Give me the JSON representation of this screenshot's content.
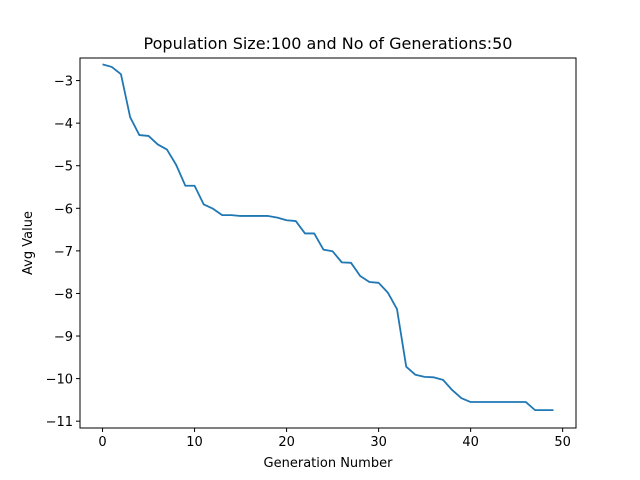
{
  "chart_data": {
    "type": "line",
    "title": "Population Size:100 and No of Generations:50",
    "xlabel": "Generation Number",
    "ylabel": "Avg Value",
    "xlim": [
      -2.45,
      51.45
    ],
    "ylim": [
      -11.16,
      -2.47
    ],
    "xticks": [
      0,
      10,
      20,
      30,
      40,
      50
    ],
    "yticks": [
      -3,
      -4,
      -5,
      -6,
      -7,
      -8,
      -9,
      -10,
      -11
    ],
    "tick_labels": {
      "x": [
        "0",
        "10",
        "20",
        "30",
        "40",
        "50"
      ],
      "y": [
        "−3",
        "−4",
        "−5",
        "−6",
        "−7",
        "−8",
        "−9",
        "−10",
        "−11"
      ]
    },
    "grid": false,
    "series": [
      {
        "color": "#1f77b4",
        "x": [
          0,
          1,
          2,
          3,
          4,
          5,
          6,
          7,
          8,
          9,
          10,
          11,
          12,
          13,
          14,
          15,
          16,
          17,
          18,
          19,
          20,
          21,
          22,
          23,
          24,
          25,
          26,
          27,
          28,
          29,
          30,
          31,
          32,
          33,
          34,
          35,
          36,
          37,
          38,
          39,
          40,
          41,
          42,
          43,
          44,
          45,
          46,
          47,
          48,
          49
        ],
        "values": [
          -2.62,
          -2.68,
          -2.85,
          -3.86,
          -4.28,
          -4.3,
          -4.5,
          -4.62,
          -4.98,
          -5.47,
          -5.47,
          -5.91,
          -6.01,
          -6.16,
          -6.16,
          -6.18,
          -6.18,
          -6.18,
          -6.18,
          -6.22,
          -6.28,
          -6.3,
          -6.59,
          -6.59,
          -6.97,
          -7.01,
          -7.27,
          -7.28,
          -7.59,
          -7.73,
          -7.75,
          -7.98,
          -8.37,
          -9.72,
          -9.91,
          -9.96,
          -9.97,
          -10.03,
          -10.27,
          -10.46,
          -10.55,
          -10.55,
          -10.55,
          -10.55,
          -10.55,
          -10.55,
          -10.55,
          -10.74,
          -10.74,
          -10.74
        ]
      }
    ]
  }
}
